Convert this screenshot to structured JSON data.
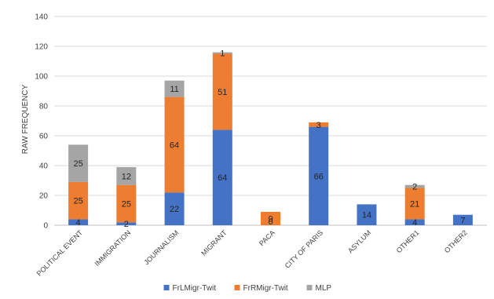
{
  "chart_data": {
    "type": "bar",
    "stacked": true,
    "ylabel": "RAW FREQUENCY",
    "xlabel": "",
    "ylim": [
      0,
      140
    ],
    "yticks": [
      0,
      20,
      40,
      60,
      80,
      100,
      120,
      140
    ],
    "grid": "horizontal",
    "legend_position": "bottom",
    "categories": [
      "POLITICAL EVENT",
      "IMMIGRATION",
      "JOURNALISM",
      "MIGRANT",
      "PACA",
      "CITY OF PARIS",
      "ASYLUM",
      "OTHER1",
      "OTHER2"
    ],
    "series": [
      {
        "name": "FrLMigr-Twit",
        "color": "#4472C4",
        "values": [
          4,
          2,
          22,
          64,
          0,
          66,
          14,
          4,
          7
        ]
      },
      {
        "name": "FrRMigr-Twit",
        "color": "#ED7D31",
        "values": [
          25,
          25,
          64,
          51,
          9,
          3,
          0,
          21,
          0
        ]
      },
      {
        "name": "MLP",
        "color": "#A5A5A5",
        "values": [
          25,
          12,
          11,
          1,
          0,
          0,
          0,
          2,
          0
        ]
      }
    ],
    "data_labels": [
      [
        "4",
        "2",
        "22",
        "64",
        "",
        "66",
        "14",
        "4",
        "7"
      ],
      [
        "25",
        "25",
        "64",
        "51",
        "9",
        "3",
        "",
        "21",
        ""
      ],
      [
        "25",
        "12",
        "11",
        "1",
        "",
        "",
        "",
        "2",
        ""
      ]
    ],
    "zero_label": {
      "category_index": 4,
      "text": "0"
    }
  }
}
